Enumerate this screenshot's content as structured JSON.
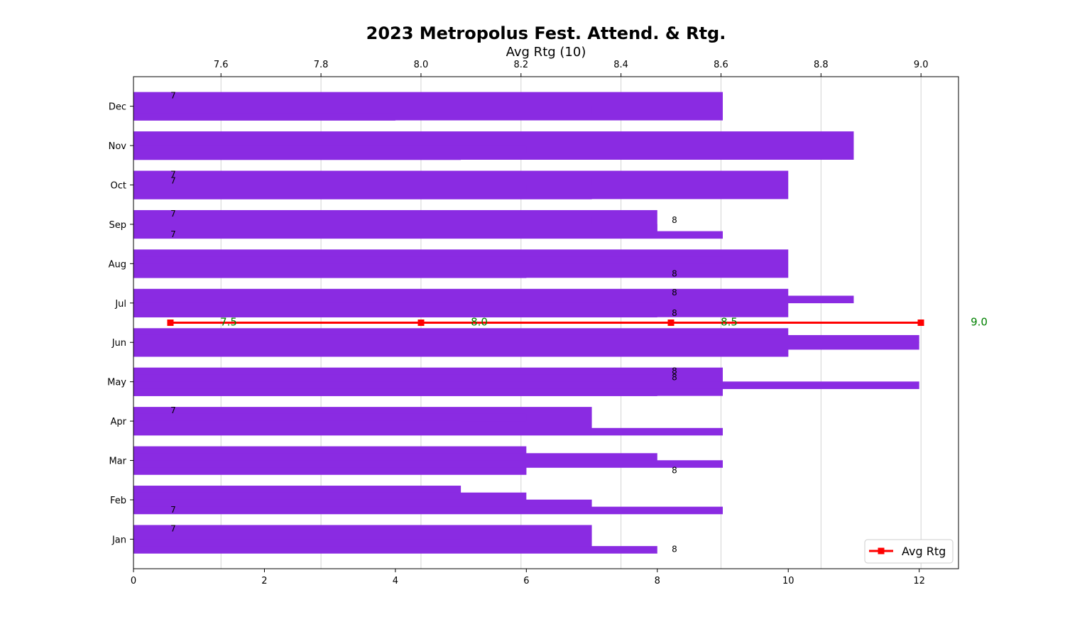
{
  "chart_data": {
    "type": "bar",
    "title": "2023 Metropolus Fest. Attend. & Rtg.",
    "x2label": "Avg Rtg (10)",
    "categories": [
      "Jan",
      "Feb",
      "Mar",
      "Apr",
      "May",
      "Jun",
      "Jul",
      "Aug",
      "Sep",
      "Oct",
      "Nov",
      "Dec"
    ],
    "bar_color": "#8a2be2",
    "bar_layers": [
      [
        7,
        5,
        6,
        7,
        9,
        10,
        10,
        10,
        8,
        10,
        11,
        9
      ],
      [
        4,
        6,
        8,
        6,
        8,
        12,
        11,
        9,
        7,
        7,
        5,
        5
      ],
      [
        5,
        7,
        9,
        5,
        12,
        12,
        8,
        8,
        8,
        6,
        6,
        7
      ],
      [
        8,
        9,
        6,
        9,
        8,
        10,
        8,
        6,
        9,
        7,
        5,
        4
      ]
    ],
    "bar_annotations": [
      {
        "category": "Jan",
        "text": "7",
        "side": "left",
        "level": "upper"
      },
      {
        "category": "Jan",
        "text": "8",
        "side": "right",
        "level": "lower"
      },
      {
        "category": "Feb",
        "text": "7",
        "side": "left",
        "level": "lower"
      },
      {
        "category": "Mar",
        "text": "8",
        "side": "right",
        "level": "lower"
      },
      {
        "category": "Apr",
        "text": "7",
        "side": "left",
        "level": "upper"
      },
      {
        "category": "May",
        "text": "8",
        "side": "right",
        "level": "upper"
      },
      {
        "category": "May",
        "text": "8",
        "side": "right",
        "level": "middle"
      },
      {
        "category": "Jul",
        "text": "8",
        "side": "right",
        "level": "upper"
      },
      {
        "category": "Jul",
        "text": "8",
        "side": "right",
        "level": "lower"
      },
      {
        "category": "Aug",
        "text": "8",
        "side": "right",
        "level": "lower"
      },
      {
        "category": "Sep",
        "text": "7",
        "side": "left",
        "level": "upper"
      },
      {
        "category": "Sep",
        "text": "8",
        "side": "right",
        "level": "middle"
      },
      {
        "category": "Sep",
        "text": "7",
        "side": "left",
        "level": "lower"
      },
      {
        "category": "Oct",
        "text": "7",
        "side": "left",
        "level": "upper"
      },
      {
        "category": "Oct",
        "text": "7",
        "side": "left",
        "level": "middle"
      },
      {
        "category": "Dec",
        "text": "7",
        "side": "left",
        "level": "upper"
      }
    ],
    "xlim": [
      0,
      12.6
    ],
    "xticks": [
      0,
      2,
      4,
      6,
      8,
      10,
      12
    ],
    "x2lim": [
      7.425,
      9.075
    ],
    "x2ticks": [
      "7.6",
      "7.8",
      "8.0",
      "8.2",
      "8.4",
      "8.6",
      "8.8",
      "9.0"
    ],
    "rating_series": {
      "name": "Avg Rtg",
      "color": "#ff0000",
      "x": [
        7.5,
        8.0,
        8.5,
        9.0
      ],
      "labels": [
        "7.5",
        "8.0",
        "8.5",
        "9.0"
      ],
      "label_color": "#008000"
    },
    "grid": "vertical lines at top-axis ticks",
    "legend_position": "lower right"
  }
}
